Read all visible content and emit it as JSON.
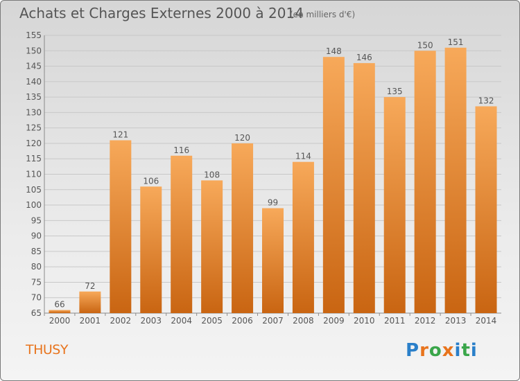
{
  "title": "Achats et Charges Externes 2000 à 2014",
  "unit": "(en milliers d'€)",
  "commune": "THUSY",
  "logo": {
    "letters": [
      "P",
      "r",
      "o",
      "x",
      "i",
      "t",
      "i"
    ],
    "colors": [
      "#2a7fc9",
      "#e8741d",
      "#3aa64a",
      "#e8741d",
      "#2a7fc9",
      "#3aa64a",
      "#2a7fc9"
    ]
  },
  "colors": {
    "bar_top": "#f7a95a",
    "bar_bottom": "#c96512",
    "grid": "#c8c8c8",
    "text": "#555555"
  },
  "chart_data": {
    "type": "bar",
    "categories": [
      "2000",
      "2001",
      "2002",
      "2003",
      "2004",
      "2005",
      "2006",
      "2007",
      "2008",
      "2009",
      "2010",
      "2011",
      "2012",
      "2013",
      "2014"
    ],
    "values": [
      66,
      72,
      121,
      106,
      116,
      108,
      120,
      99,
      114,
      148,
      146,
      135,
      150,
      151,
      132
    ],
    "data_labels": [
      "66",
      "72",
      "121",
      "106",
      "116",
      "108",
      "120",
      "99",
      "114",
      "148",
      "146",
      "135",
      "150",
      "151",
      "132"
    ],
    "yticks": [
      "65",
      "70",
      "75",
      "80",
      "85",
      "90",
      "95",
      "100",
      "105",
      "110",
      "115",
      "120",
      "125",
      "130",
      "135",
      "140",
      "145",
      "150",
      "155"
    ],
    "ylim": [
      65,
      155
    ],
    "grid": true,
    "xlabel": "",
    "ylabel": ""
  }
}
